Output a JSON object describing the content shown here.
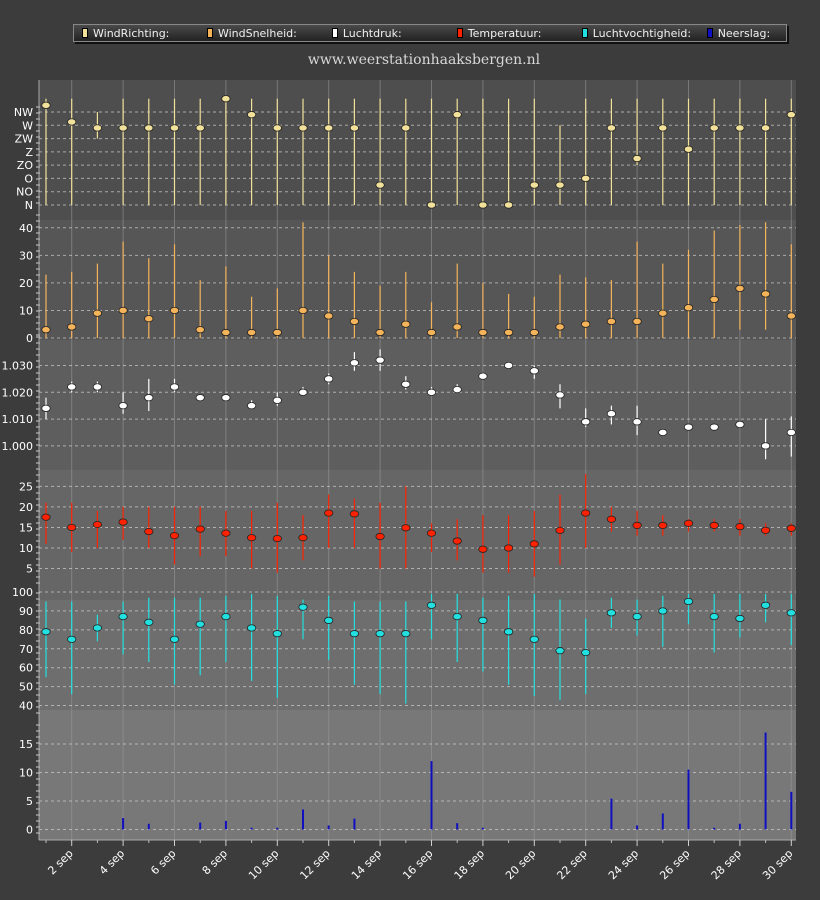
{
  "legend": [
    {
      "label": "WindRichting:",
      "color": "#f2e19a"
    },
    {
      "label": "WindSnelheid:",
      "color": "#f5b35a"
    },
    {
      "label": "Luchtdruk:",
      "color": "#ffffff"
    },
    {
      "label": "Temperatuur:",
      "color": "#ff2200"
    },
    {
      "label": "Luchtvochtigheid:",
      "color": "#22e0e0"
    },
    {
      "label": "Neerslag:",
      "color": "#1010c0"
    }
  ],
  "site": "www.weerstationhaaksbergen.nl",
  "chart_data": {
    "type": "line",
    "x_tick_labels": [
      "2 sep",
      "4 sep",
      "6 sep",
      "8 sep",
      "10 sep",
      "12 sep",
      "14 sep",
      "16 sep",
      "18 sep",
      "20 sep",
      "22 sep",
      "24 sep",
      "26 sep",
      "28 sep",
      "30 sep"
    ],
    "x": [
      "1 sep",
      "2 sep",
      "3 sep",
      "4 sep",
      "5 sep",
      "6 sep",
      "7 sep",
      "8 sep",
      "9 sep",
      "10 sep",
      "11 sep",
      "12 sep",
      "13 sep",
      "14 sep",
      "15 sep",
      "16 sep",
      "17 sep",
      "18 sep",
      "19 sep",
      "20 sep",
      "21 sep",
      "22 sep",
      "23 sep",
      "24 sep",
      "25 sep",
      "26 sep",
      "27 sep",
      "28 sep",
      "29 sep",
      "30 sep"
    ],
    "panels": [
      {
        "name": "WindRichting",
        "color": "#f2e19a",
        "categories": [
          "N",
          "NO",
          "O",
          "ZO",
          "Z",
          "ZW",
          "W",
          "NW"
        ],
        "tick_labels": [
          "NW",
          "W",
          "ZW",
          "Z",
          "ZO",
          "O",
          "NO",
          "N"
        ],
        "values": [
          7.5,
          6.25,
          5.8,
          5.8,
          5.8,
          5.8,
          5.8,
          8,
          6.8,
          5.8,
          5.8,
          5.8,
          5.8,
          1.5,
          5.8,
          0,
          6.8,
          0,
          0,
          1.5,
          1.5,
          2,
          5.8,
          3.5,
          5.8,
          4.2,
          5.8,
          5.8,
          5.8,
          6.8
        ],
        "min": [
          0,
          0,
          5,
          0,
          0,
          0,
          0,
          0,
          0,
          0,
          0,
          0,
          0,
          0,
          0,
          0,
          0,
          0,
          0,
          0,
          0,
          0,
          0,
          3,
          0,
          0,
          0,
          0,
          0,
          0
        ],
        "max": [
          8,
          8,
          7,
          8,
          8,
          8,
          8,
          8,
          8,
          8,
          8,
          8,
          8,
          8,
          8,
          8,
          8,
          8,
          8,
          8,
          6,
          8,
          8,
          8,
          8,
          8,
          8,
          8,
          8,
          8
        ]
      },
      {
        "name": "WindSnelheid",
        "color": "#f5b35a",
        "ylim": [
          0,
          45
        ],
        "ticks": [
          0,
          10,
          20,
          30,
          40
        ],
        "values": [
          3,
          4,
          9,
          10,
          7,
          10,
          3,
          2,
          2,
          2,
          10,
          8,
          6,
          2,
          5,
          2,
          4,
          2,
          2,
          2,
          4,
          5,
          6,
          6,
          9,
          11,
          14,
          18,
          16,
          8
        ],
        "min": [
          0,
          0,
          0,
          0,
          0,
          0,
          0,
          0,
          0,
          0,
          0,
          0,
          0,
          0,
          0,
          0,
          0,
          0,
          0,
          0,
          0,
          0,
          0,
          0,
          0,
          0,
          0,
          3,
          3,
          0
        ],
        "max": [
          23,
          24,
          27,
          35,
          29,
          34,
          21,
          26,
          15,
          18,
          42,
          30,
          24,
          19,
          24,
          13,
          27,
          20,
          16,
          15,
          23,
          22,
          21,
          35,
          27,
          32,
          39,
          41,
          42,
          34
        ]
      },
      {
        "name": "Luchtdruk",
        "color": "#ffffff",
        "ylim": [
          0.991,
          1.041
        ],
        "ticks": [
          1.0,
          1.01,
          1.02,
          1.03
        ],
        "tick_labels": [
          "1.000",
          "1.010",
          "1.020",
          "1.030"
        ],
        "values": [
          1.014,
          1.022,
          1.022,
          1.015,
          1.018,
          1.022,
          1.018,
          1.018,
          1.015,
          1.017,
          1.02,
          1.025,
          1.031,
          1.032,
          1.023,
          1.02,
          1.021,
          1.026,
          1.03,
          1.028,
          1.019,
          1.009,
          1.012,
          1.009,
          1.005,
          1.007,
          1.007,
          1.008,
          1.0,
          1.005
        ],
        "min": [
          1.01,
          1.02,
          1.02,
          1.012,
          1.013,
          1.02,
          1.017,
          1.017,
          1.014,
          1.015,
          1.019,
          1.023,
          1.028,
          1.028,
          1.021,
          1.019,
          1.02,
          1.025,
          1.029,
          1.025,
          1.014,
          1.007,
          1.008,
          1.004,
          1.004,
          1.006,
          1.006,
          1.007,
          0.995,
          0.996
        ],
        "max": [
          1.018,
          1.024,
          1.024,
          1.02,
          1.025,
          1.025,
          1.019,
          1.019,
          1.017,
          1.02,
          1.022,
          1.027,
          1.035,
          1.036,
          1.026,
          1.022,
          1.023,
          1.027,
          1.031,
          1.03,
          1.023,
          1.014,
          1.015,
          1.015,
          1.006,
          1.008,
          1.008,
          1.009,
          1.01,
          1.011
        ]
      },
      {
        "name": "Temperatuur",
        "color": "#ff2200",
        "ylim": [
          1,
          28
        ],
        "ticks": [
          5,
          10,
          15,
          20,
          25
        ],
        "values": [
          17.5,
          15,
          15.7,
          16.3,
          14,
          13,
          14.6,
          13.6,
          12.5,
          12.3,
          12.5,
          18.5,
          18.3,
          12.8,
          14.9,
          13.6,
          11.7,
          9.7,
          10,
          11,
          14.3,
          18.5,
          17,
          15.5,
          15.5,
          16,
          15.5,
          15.2,
          14.3,
          14.8
        ],
        "min": [
          11,
          9,
          10,
          12,
          10,
          6,
          8,
          8,
          5,
          4,
          7,
          10,
          10,
          5,
          5,
          9,
          7,
          4,
          4,
          3,
          6,
          10,
          14,
          13,
          13,
          14,
          14,
          13,
          13,
          13
        ],
        "max": [
          21,
          21,
          19,
          20,
          20,
          20,
          20,
          19,
          19,
          21,
          18,
          23,
          22,
          21,
          25,
          16,
          17,
          18,
          18,
          19,
          23,
          28,
          20,
          19,
          18,
          17,
          17,
          17,
          16,
          16
        ]
      },
      {
        "name": "Luchtvochtigheid",
        "color": "#22e0e0",
        "ylim": [
          35,
          100
        ],
        "ticks": [
          40,
          50,
          60,
          70,
          80,
          90,
          100
        ],
        "values": [
          79,
          75,
          81,
          87,
          84,
          75,
          83,
          87,
          81,
          78,
          92,
          85,
          78,
          78,
          78,
          93,
          87,
          85,
          79,
          75,
          69,
          68,
          89,
          87,
          90,
          95,
          87,
          86,
          93,
          89
        ],
        "min": [
          55,
          46,
          74,
          67,
          63,
          51,
          56,
          63,
          53,
          44,
          75,
          64,
          51,
          46,
          41,
          75,
          63,
          58,
          51,
          45,
          43,
          46,
          81,
          77,
          71,
          83,
          68,
          76,
          84,
          72
        ],
        "max": [
          95,
          95,
          88,
          95,
          97,
          97,
          97,
          98,
          99,
          98,
          96,
          98,
          95,
          95,
          95,
          99,
          99,
          97,
          98,
          99,
          96,
          86,
          97,
          96,
          98,
          99,
          99,
          99,
          99,
          99
        ]
      },
      {
        "name": "Neerslag",
        "color": "#1010c0",
        "type": "bar",
        "ylim": [
          -1.5,
          18.5
        ],
        "ticks": [
          0,
          5,
          10,
          15
        ],
        "values": [
          0,
          0,
          0,
          2,
          1,
          0,
          1.2,
          1.5,
          0.3,
          0.3,
          3.5,
          0.7,
          1.9,
          0,
          0,
          12,
          1.1,
          0.3,
          0,
          0,
          0,
          0,
          5.4,
          0.7,
          2.8,
          10.5,
          0.3,
          1,
          17,
          6.6
        ]
      }
    ]
  }
}
